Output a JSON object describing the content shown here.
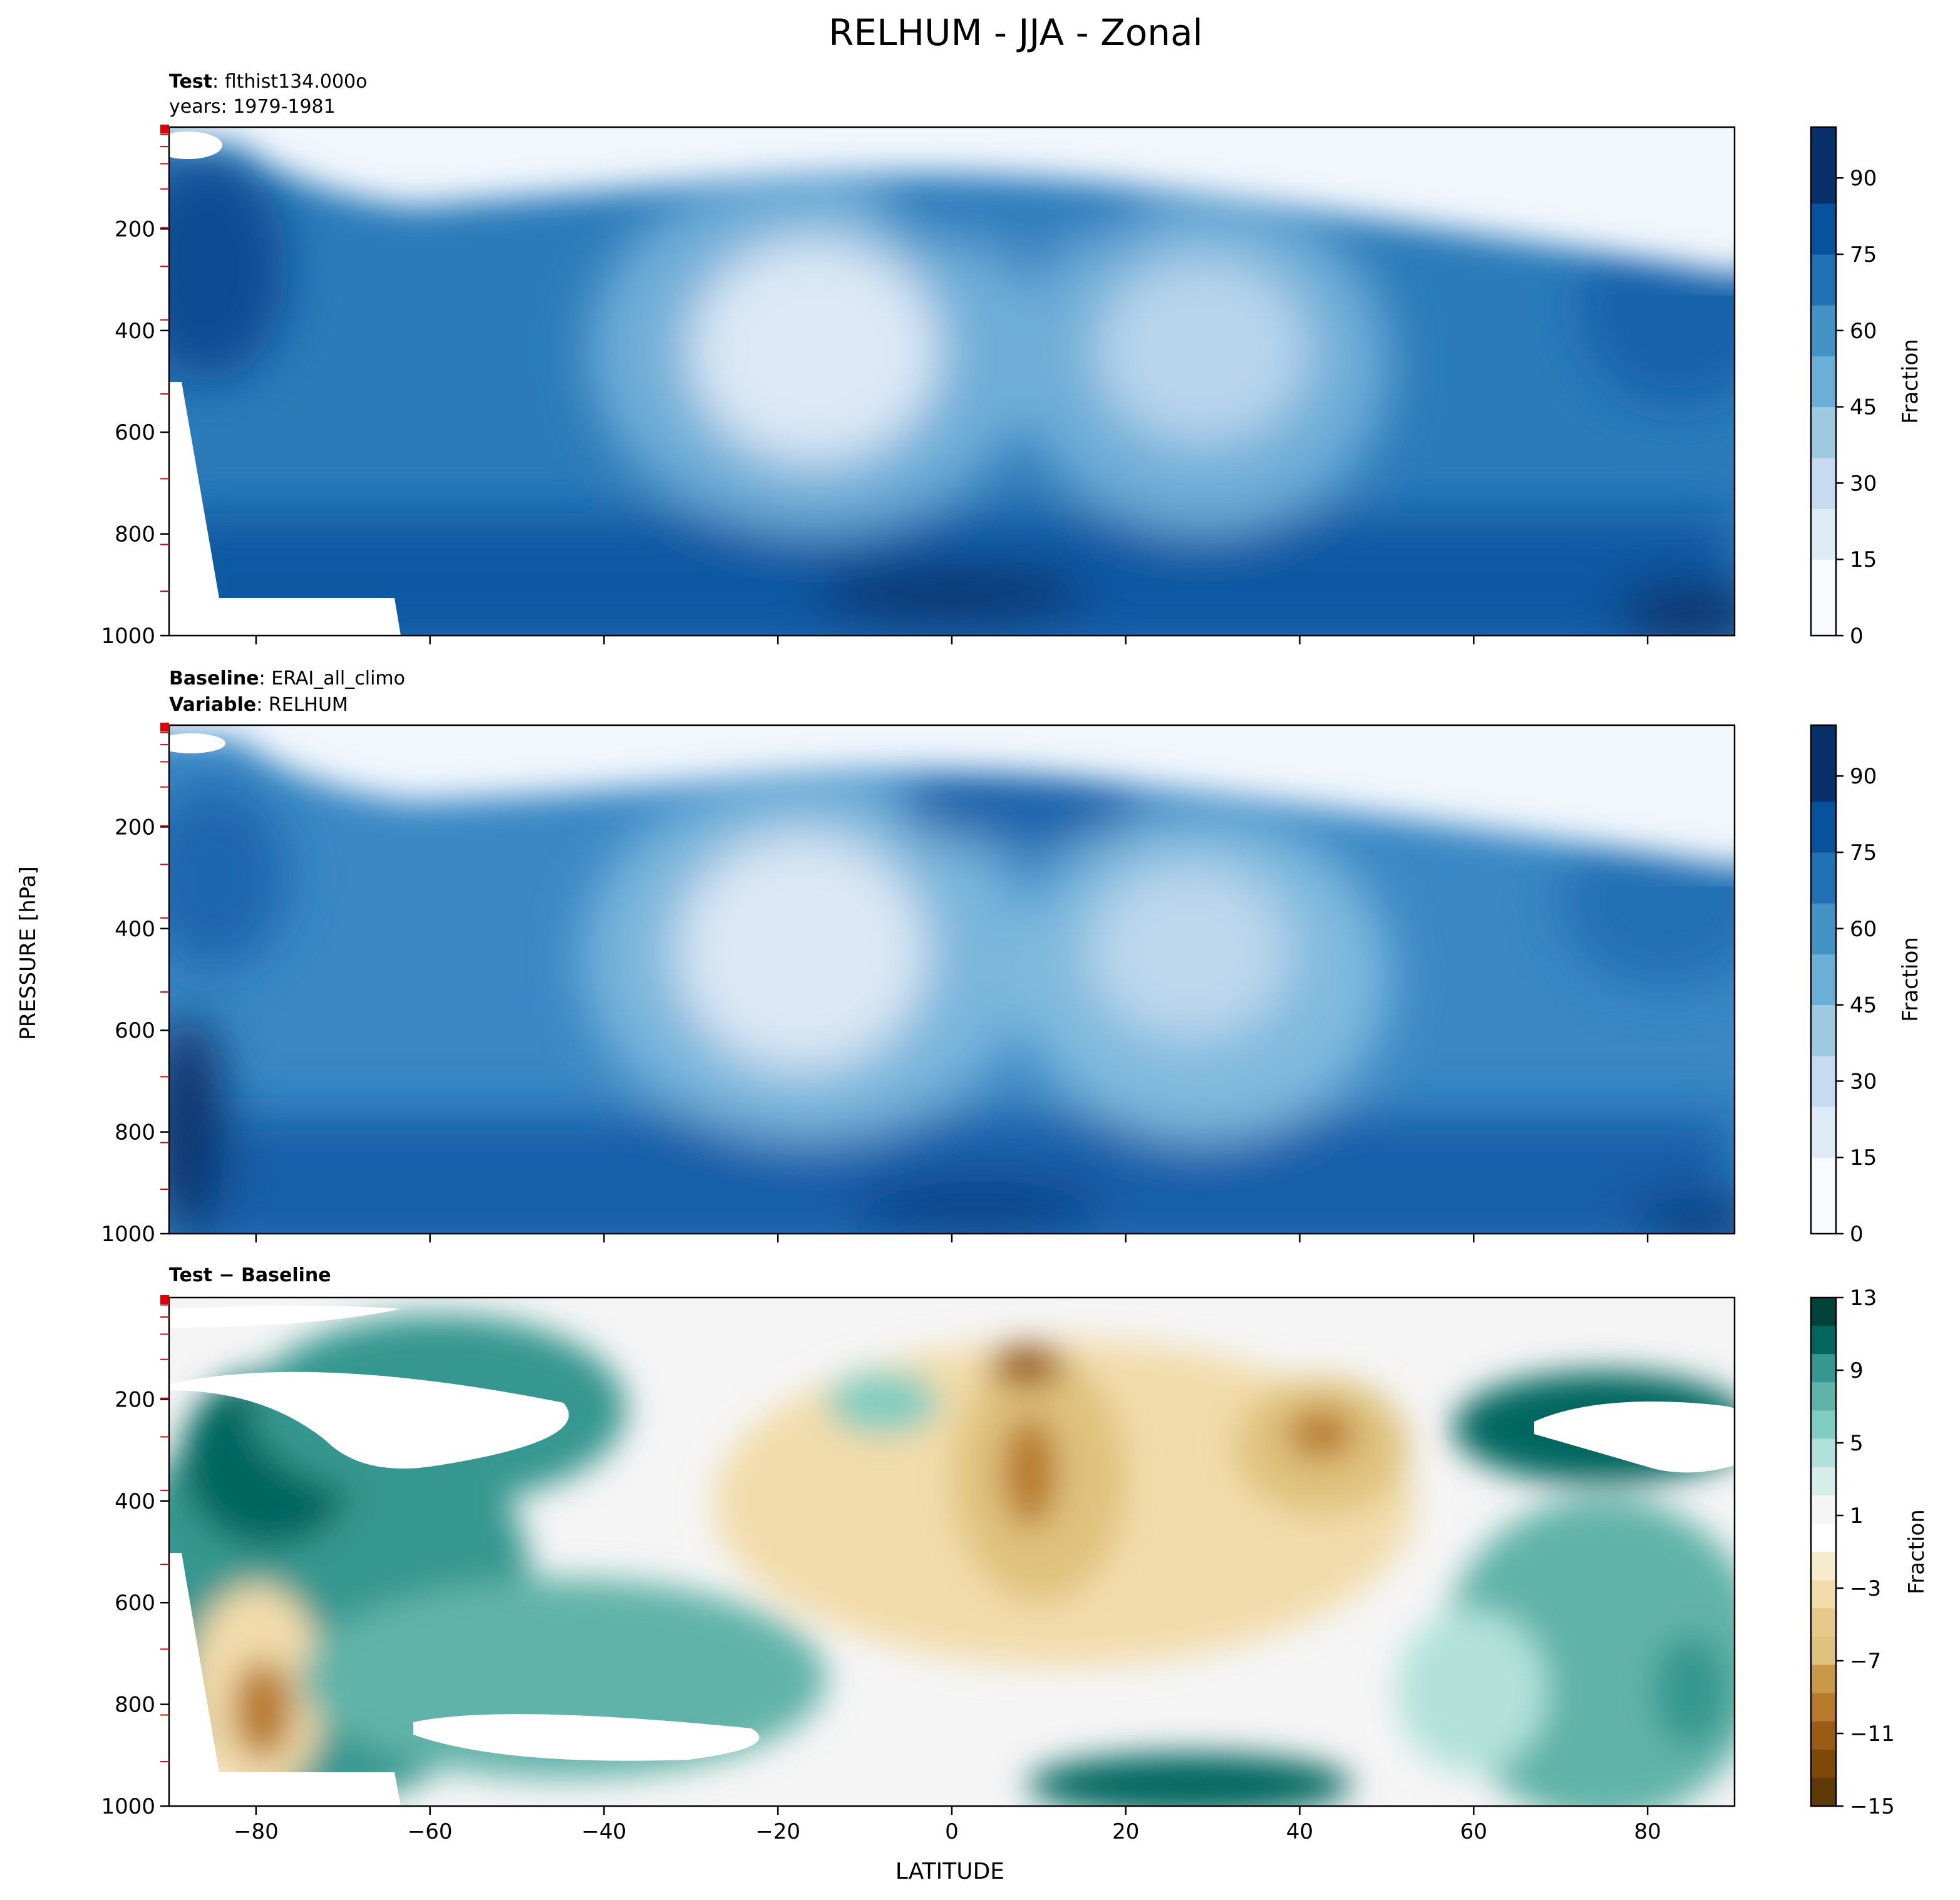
{
  "figure": {
    "title": "RELHUM - JJA - Zonal",
    "ylabel": "PRESSURE [hPa]",
    "xlabel": "LATITUDE"
  },
  "chart_data": [
    {
      "type": "heatmap",
      "header": [
        {
          "label": "Test",
          "value": "flthist134.000o"
        },
        {
          "label": "",
          "value": "years: 1979-1981"
        }
      ],
      "x_ticks": [
        -80,
        -60,
        -40,
        -20,
        0,
        20,
        40,
        60,
        80
      ],
      "x_tick_labels_shown": false,
      "xlim": [
        -90,
        90
      ],
      "y_ticks": [
        200,
        400,
        600,
        800,
        1000
      ],
      "ylim": [
        1000,
        0
      ],
      "colorbar": {
        "label": "Fraction",
        "ticks": [
          0,
          15,
          30,
          45,
          60,
          75,
          90
        ],
        "range": [
          0,
          100
        ],
        "colormap": "Blues",
        "colors": [
          "#f7fbff",
          "#deebf7",
          "#c6dbef",
          "#9ecae1",
          "#6baed6",
          "#4292c6",
          "#2171b5",
          "#08519c",
          "#08306b"
        ]
      }
    },
    {
      "type": "heatmap",
      "header": [
        {
          "label": "Baseline",
          "value": "ERAI_all_climo"
        },
        {
          "label": "Variable",
          "value": "RELHUM"
        }
      ],
      "x_ticks": [
        -80,
        -60,
        -40,
        -20,
        0,
        20,
        40,
        60,
        80
      ],
      "x_tick_labels_shown": false,
      "xlim": [
        -90,
        90
      ],
      "y_ticks": [
        200,
        400,
        600,
        800,
        1000
      ],
      "ylim": [
        1000,
        0
      ],
      "colorbar": {
        "label": "Fraction",
        "ticks": [
          0,
          15,
          30,
          45,
          60,
          75,
          90
        ],
        "range": [
          0,
          100
        ],
        "colormap": "Blues",
        "colors": [
          "#f7fbff",
          "#deebf7",
          "#c6dbef",
          "#9ecae1",
          "#6baed6",
          "#4292c6",
          "#2171b5",
          "#08519c",
          "#08306b"
        ]
      }
    },
    {
      "type": "heatmap",
      "header": [
        {
          "label": "Test − Baseline",
          "value": ""
        }
      ],
      "x_ticks": [
        -80,
        -60,
        -40,
        -20,
        0,
        20,
        40,
        60,
        80
      ],
      "x_tick_labels": [
        "−80",
        "−60",
        "−40",
        "−20",
        "0",
        "20",
        "40",
        "60",
        "80"
      ],
      "x_tick_labels_shown": true,
      "xlim": [
        -90,
        90
      ],
      "y_ticks": [
        200,
        400,
        600,
        800,
        1000
      ],
      "ylim": [
        1000,
        0
      ],
      "colorbar": {
        "label": "Fraction",
        "ticks": [
          13,
          9,
          5,
          1,
          -3,
          -7,
          -11,
          -15
        ],
        "tick_labels": [
          "13",
          "9",
          "5",
          "1",
          "−3",
          "−7",
          "−11",
          "−15"
        ],
        "range": [
          -15,
          13
        ],
        "colormap": "BrBG",
        "levels_top_to_bottom": [
          "#01423a",
          "#01665e",
          "#35978f",
          "#60b3a8",
          "#80cdc1",
          "#b2e2da",
          "#d5eeea",
          "#f5f5f5",
          "#ffffff",
          "#f6ebcd",
          "#f2dcab",
          "#e8c98a",
          "#dfc27d",
          "#c89848",
          "#b87a2a",
          "#9a5c14",
          "#7e4908",
          "#5e3a08"
        ]
      }
    }
  ]
}
